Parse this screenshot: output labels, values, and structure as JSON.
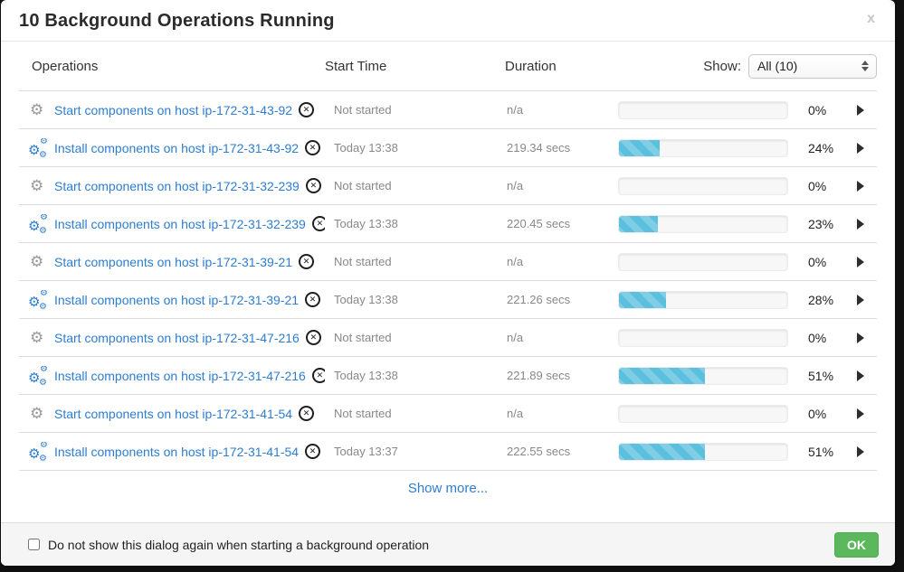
{
  "dialog": {
    "title": "10 Background Operations Running",
    "close_icon": "x"
  },
  "header": {
    "operations": "Operations",
    "start_time": "Start Time",
    "duration": "Duration",
    "show_label": "Show:",
    "show_value": "All (10)"
  },
  "operations": [
    {
      "name": "Start components on host ip-172-31-43-92",
      "type": "start",
      "start_time": "Not started",
      "duration": "n/a",
      "progress": 0,
      "percent_label": "0%"
    },
    {
      "name": "Install components on host ip-172-31-43-92",
      "type": "install",
      "start_time": "Today 13:38",
      "duration": "219.34 secs",
      "progress": 24,
      "percent_label": "24%"
    },
    {
      "name": "Start components on host ip-172-31-32-239",
      "type": "start",
      "start_time": "Not started",
      "duration": "n/a",
      "progress": 0,
      "percent_label": "0%"
    },
    {
      "name": "Install components on host ip-172-31-32-239",
      "type": "install",
      "start_time": "Today 13:38",
      "duration": "220.45 secs",
      "progress": 23,
      "percent_label": "23%"
    },
    {
      "name": "Start components on host ip-172-31-39-21",
      "type": "start",
      "start_time": "Not started",
      "duration": "n/a",
      "progress": 0,
      "percent_label": "0%"
    },
    {
      "name": "Install components on host ip-172-31-39-21",
      "type": "install",
      "start_time": "Today 13:38",
      "duration": "221.26 secs",
      "progress": 28,
      "percent_label": "28%"
    },
    {
      "name": "Start components on host ip-172-31-47-216",
      "type": "start",
      "start_time": "Not started",
      "duration": "n/a",
      "progress": 0,
      "percent_label": "0%"
    },
    {
      "name": "Install components on host ip-172-31-47-216",
      "type": "install",
      "start_time": "Today 13:38",
      "duration": "221.89 secs",
      "progress": 51,
      "percent_label": "51%"
    },
    {
      "name": "Start components on host ip-172-31-41-54",
      "type": "start",
      "start_time": "Not started",
      "duration": "n/a",
      "progress": 0,
      "percent_label": "0%"
    },
    {
      "name": "Install components on host ip-172-31-41-54",
      "type": "install",
      "start_time": "Today 13:37",
      "duration": "222.55 secs",
      "progress": 51,
      "percent_label": "51%"
    }
  ],
  "show_more_label": "Show more...",
  "footer": {
    "checkbox_label": "Do not show this dialog again when starting a background operation",
    "checkbox_checked": false,
    "ok_label": "OK"
  },
  "icons": {
    "start_gear": "⚙",
    "install_gear": "⚙",
    "abort_x": "✕"
  },
  "colors": {
    "link_blue": "#2d7dd2",
    "progress_fill": "#5bc0de",
    "ok_green": "#5cb85c",
    "gear_gray": "#999999"
  }
}
